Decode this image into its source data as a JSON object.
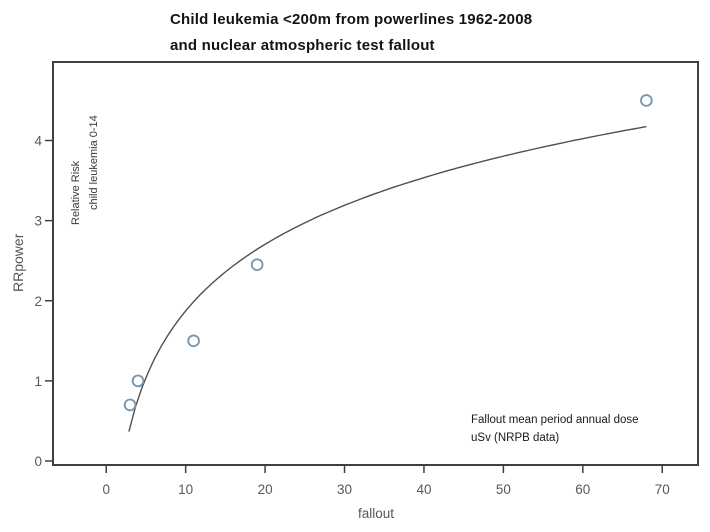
{
  "title": {
    "line1": "Child leukemia <200m from powerlines 1962-2008",
    "line2": "and nuclear atmospheric test fallout"
  },
  "chart_data": {
    "type": "scatter",
    "title": "Child leukemia <200m from powerlines 1962-2008 and nuclear atmospheric test fallout",
    "xlabel": "fallout",
    "ylabel": "RRpower",
    "inner_label": {
      "line1": "Relative Risk",
      "line2": "child leukemia 0-14"
    },
    "annotation": {
      "line1": "Fallout mean period annual dose",
      "line2": "uSv (NRPB data)"
    },
    "points": [
      {
        "x": 3,
        "y": 0.7
      },
      {
        "x": 4,
        "y": 1.0
      },
      {
        "x": 11,
        "y": 1.5
      },
      {
        "x": 19,
        "y": 2.45
      },
      {
        "x": 68,
        "y": 4.5
      }
    ],
    "fit_curve": {
      "type": "logarithmic",
      "a": -0.89,
      "b": 1.2,
      "x_start": 2.85,
      "x_end": 68,
      "description": "RR = 1.2*ln(dose) - 0.89"
    },
    "x_ticks": [
      0,
      10,
      20,
      30,
      40,
      50,
      60,
      70
    ],
    "y_ticks": [
      0,
      1,
      2,
      3,
      4
    ],
    "xlim": [
      -6.7,
      74.5
    ],
    "ylim": [
      -0.05,
      4.98
    ],
    "grid": false,
    "legend": "none",
    "colors": {
      "point": "#7595ad",
      "curve": "#4f4f4f",
      "axis": "#3f3f3f",
      "tick_label": "#585858",
      "title": "#141414"
    }
  }
}
